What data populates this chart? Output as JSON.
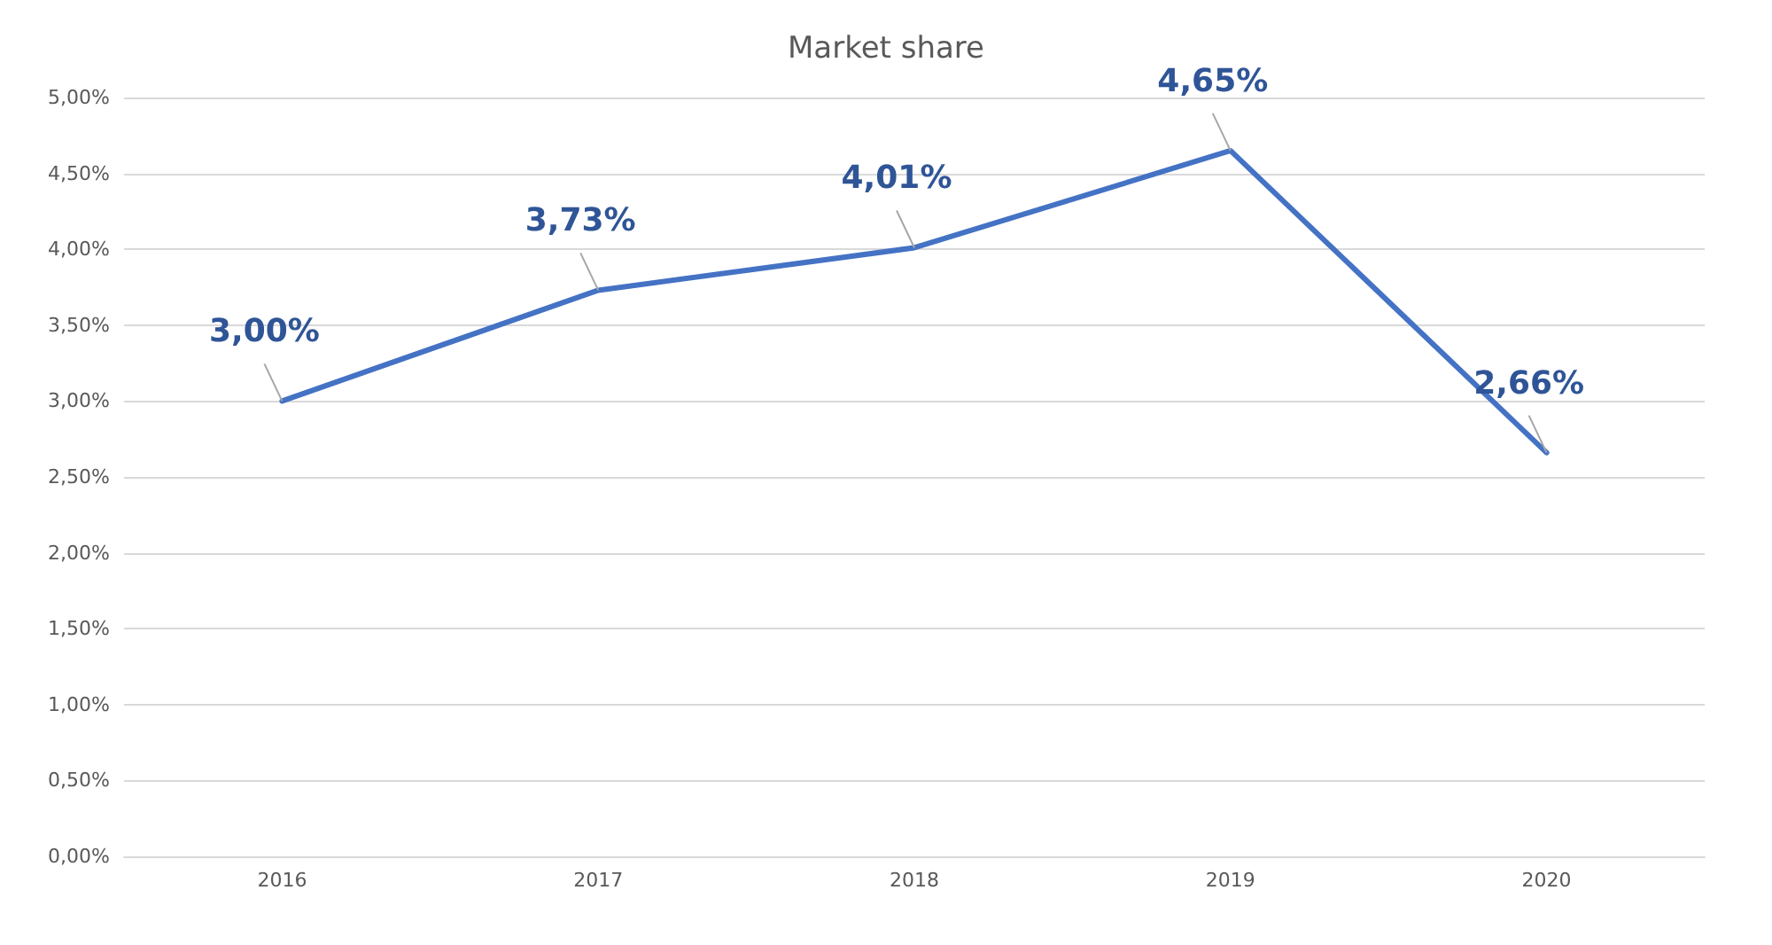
{
  "chart_data": {
    "type": "line",
    "title": "Market share",
    "categories": [
      "2016",
      "2017",
      "2018",
      "2019",
      "2020"
    ],
    "series": [
      {
        "color": "#4472c4",
        "values": [
          3.0,
          3.73,
          4.01,
          4.65,
          2.66
        ],
        "value_labels": [
          "3,00%",
          "3,73%",
          "4,01%",
          "4,65%",
          "2,66%"
        ]
      }
    ],
    "ylim": [
      0,
      5
    ],
    "yticks": [
      {
        "value": 0,
        "label": "0,00%"
      },
      {
        "value": 0.5,
        "label": "0,50%"
      },
      {
        "value": 1,
        "label": "1,00%"
      },
      {
        "value": 1.5,
        "label": "1,50%"
      },
      {
        "value": 2,
        "label": "2,00%"
      },
      {
        "value": 2.5,
        "label": "2,50%"
      },
      {
        "value": 3,
        "label": "3,00%"
      },
      {
        "value": 3.5,
        "label": "3,50%"
      },
      {
        "value": 4,
        "label": "4,00%"
      },
      {
        "value": 4.5,
        "label": "4,50%"
      },
      {
        "value": 5,
        "label": "5,00%"
      }
    ],
    "grid": "y",
    "marker": "none",
    "line_style": "solid"
  }
}
